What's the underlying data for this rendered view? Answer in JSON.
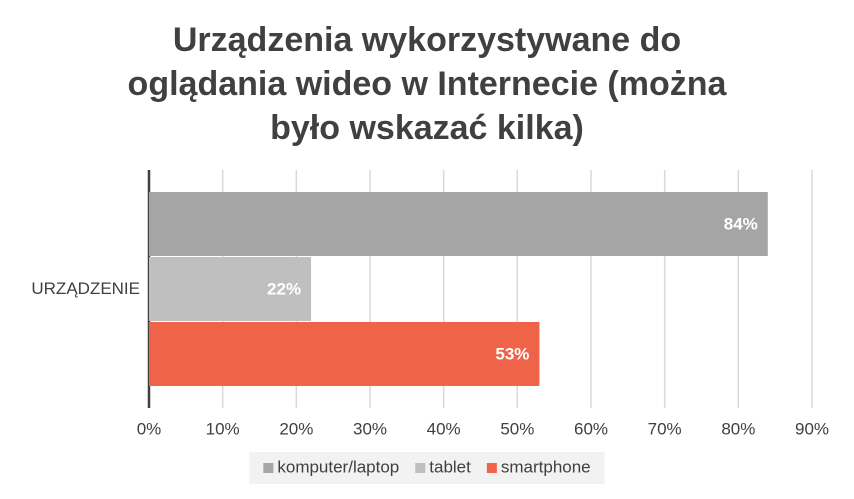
{
  "chart_data": {
    "type": "bar",
    "orientation": "horizontal",
    "title": "Urządzenia wykorzystywane do oglądania wideo w Internecie (można było wskazać kilka)",
    "categories": [
      "URZĄDZENIE"
    ],
    "series": [
      {
        "name": "komputer/laptop",
        "color": "#a5a5a5",
        "values": [
          84
        ],
        "value_labels": [
          "84%"
        ]
      },
      {
        "name": "tablet",
        "color": "#bfbfbf",
        "values": [
          22
        ],
        "value_labels": [
          "22%"
        ]
      },
      {
        "name": "smartphone",
        "color": "#ef6448",
        "values": [
          53
        ],
        "value_labels": [
          "53%"
        ]
      }
    ],
    "xlim": [
      0,
      90
    ],
    "xticks": [
      {
        "value": 0,
        "label": "0%"
      },
      {
        "value": 10,
        "label": "10%"
      },
      {
        "value": 20,
        "label": "20%"
      },
      {
        "value": 30,
        "label": "30%"
      },
      {
        "value": 40,
        "label": "40%"
      },
      {
        "value": 50,
        "label": "50%"
      },
      {
        "value": 60,
        "label": "60%"
      },
      {
        "value": 70,
        "label": "70%"
      },
      {
        "value": 80,
        "label": "80%"
      },
      {
        "value": 90,
        "label": "90%"
      }
    ],
    "grid": true,
    "legend": "bottom"
  }
}
